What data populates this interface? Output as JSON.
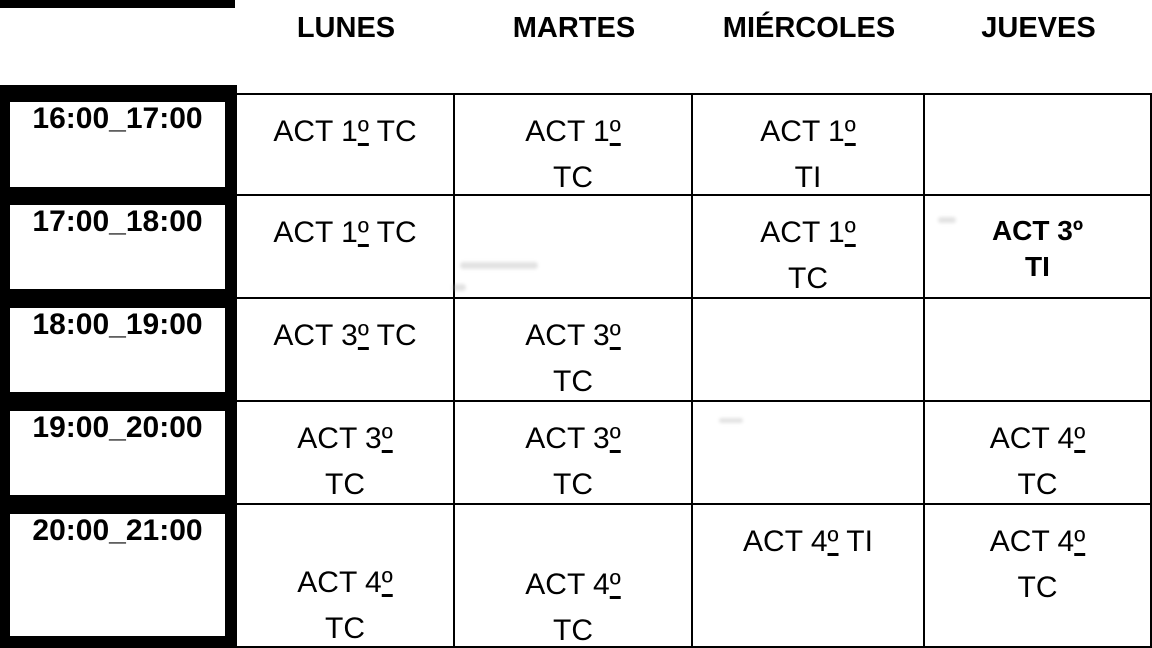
{
  "colors": {
    "background": "#ffffff",
    "text": "#000000",
    "grid_line": "#000000"
  },
  "header": {
    "days": [
      "LUNES",
      "MARTES",
      "MIÉRCOLES",
      "JUEVES"
    ]
  },
  "rows": [
    {
      "time": "16:00_17:00",
      "cells": [
        "ACT 1º TC",
        "ACT 1º\nTC",
        "ACT 1º\nTI",
        ""
      ]
    },
    {
      "time": "17:00_18:00",
      "cells": [
        "ACT 1º TC",
        "",
        "ACT 1º\nTC",
        "ACT 3º\nTI"
      ]
    },
    {
      "time": "18:00_19:00",
      "cells": [
        "ACT 3º TC",
        "ACT 3º\nTC",
        "",
        ""
      ]
    },
    {
      "time": "19:00_20:00",
      "cells": [
        "ACT 3º\nTC",
        "ACT 3º\nTC",
        "",
        "ACT 4º\nTC"
      ]
    },
    {
      "time": "20:00_21:00",
      "cells": [
        "ACT 4º\nTC",
        "ACT 4º\nTC",
        "ACT 4º TI",
        "ACT 4º\nTC"
      ]
    }
  ]
}
